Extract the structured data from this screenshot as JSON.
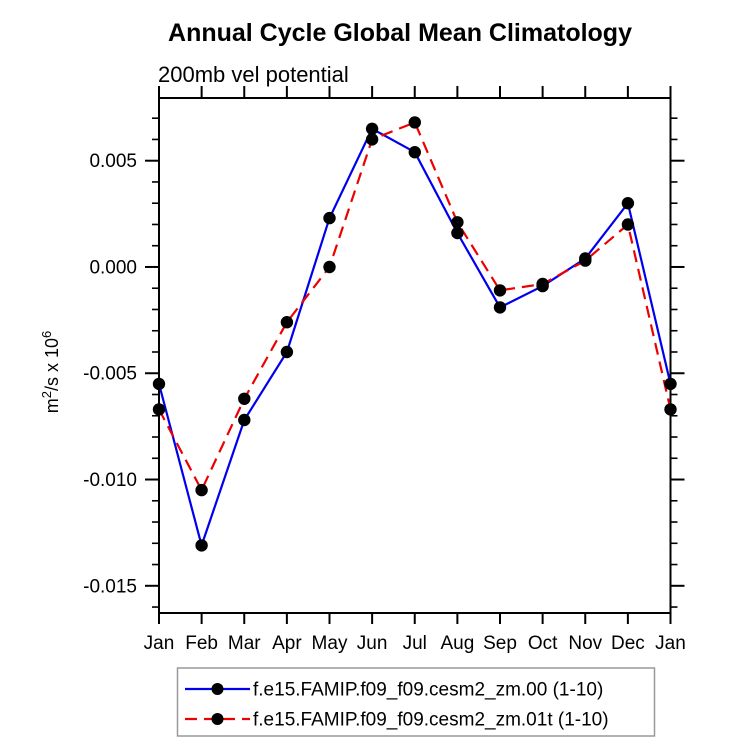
{
  "title": "Annual Cycle Global Mean Climatology",
  "subtitle": "200mb vel potential",
  "chart_data": {
    "type": "line",
    "title": "Annual Cycle Global Mean Climatology",
    "subtitle": "200mb vel potential",
    "ylabel": "m²/s x 10⁶",
    "ylabel_parts": [
      {
        "t": "m"
      },
      {
        "t": "2",
        "sup": true
      },
      {
        "t": "/s x 10"
      },
      {
        "t": "6",
        "sup": true
      }
    ],
    "categories": [
      "Jan",
      "Feb",
      "Mar",
      "Apr",
      "May",
      "Jun",
      "Jul",
      "Aug",
      "Sep",
      "Oct",
      "Nov",
      "Dec",
      "Jan"
    ],
    "series": [
      {
        "name": "f.e15.FAMIP.f09_f09.cesm2_zm.00 (1-10)",
        "color": "#0000ee",
        "line_style": "solid",
        "marker": "circle",
        "marker_color": "#000000",
        "values": [
          -0.0055,
          -0.0131,
          -0.0072,
          -0.004,
          0.0023,
          0.0065,
          0.0054,
          0.0016,
          -0.0019,
          -0.0009,
          0.0004,
          0.003,
          -0.0055
        ]
      },
      {
        "name": "f.e15.FAMIP.f09_f09.cesm2_zm.01t (1-10)",
        "color": "#ee0000",
        "line_style": "dashed",
        "marker": "circle",
        "marker_color": "#000000",
        "values": [
          -0.0067,
          -0.0105,
          -0.0062,
          -0.0026,
          0.0,
          0.006,
          0.0068,
          0.0021,
          -0.0011,
          -0.0008,
          0.0003,
          0.002,
          -0.0067
        ]
      }
    ],
    "ylim": [
      -0.01628,
      0.00795
    ],
    "yticks": [
      0.005,
      0.0,
      -0.005,
      -0.01,
      -0.015
    ],
    "ytick_labels": [
      "0.005",
      "0.000",
      "-0.005",
      "-0.010",
      "-0.015"
    ],
    "minor_tick_interval": 0.001,
    "grid": false,
    "legend_position": "bottom",
    "axis_color": "#000000"
  }
}
